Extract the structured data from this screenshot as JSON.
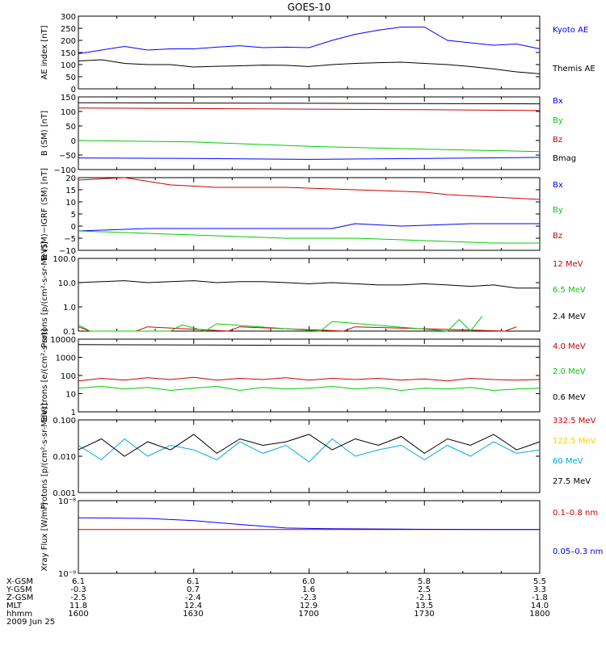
{
  "title": "GOES-10",
  "date": "2009 Jun 25",
  "ephemeris": {
    "labels": [
      "X-GSM",
      "Y-GSM",
      "Z-GSM",
      "MLT",
      "hhmm"
    ],
    "columns": [
      [
        "6.1",
        "-0.3",
        "-2.5",
        "11.8",
        "1600"
      ],
      [
        "6.1",
        "0.7",
        "-2.4",
        "12.4",
        "1630"
      ],
      [
        "6.0",
        "1.6",
        "-2.3",
        "12.9",
        "1700"
      ],
      [
        "5.8",
        "2.5",
        "-2.1",
        "13.5",
        "1730"
      ],
      [
        "5.5",
        "3.3",
        "-1.8",
        "14.0",
        "1800"
      ]
    ]
  },
  "chart_data": [
    {
      "type": "line",
      "ylabel": "AE index [nT]",
      "ylim": [
        0,
        300
      ],
      "yscale": "linear",
      "yticks": [
        0,
        50,
        100,
        150,
        200,
        250,
        300
      ],
      "yticklabels": [
        "0",
        "50",
        "100",
        "150",
        "200",
        "250",
        "300"
      ],
      "xlim": [
        16.0,
        18.0
      ],
      "series": [
        {
          "name": "Kyoto AE",
          "color": "#0000ff",
          "x": [
            16.0,
            16.1,
            16.2,
            16.3,
            16.4,
            16.5,
            16.6,
            16.7,
            16.8,
            16.9,
            17.0,
            17.1,
            17.2,
            17.3,
            17.4,
            17.5,
            17.6,
            17.7,
            17.8,
            17.9,
            18.0
          ],
          "y": [
            145,
            160,
            175,
            160,
            165,
            165,
            172,
            178,
            170,
            172,
            170,
            200,
            225,
            242,
            255,
            255,
            200,
            190,
            180,
            185,
            165
          ]
        },
        {
          "name": "Themis AE",
          "color": "#000000",
          "x": [
            16.0,
            16.1,
            16.2,
            16.3,
            16.4,
            16.5,
            16.6,
            16.7,
            16.8,
            16.9,
            17.0,
            17.1,
            17.2,
            17.3,
            17.4,
            17.5,
            17.6,
            17.7,
            17.8,
            17.9,
            18.0
          ],
          "y": [
            115,
            120,
            105,
            100,
            100,
            90,
            93,
            95,
            98,
            97,
            92,
            100,
            105,
            108,
            110,
            105,
            100,
            92,
            82,
            70,
            62
          ]
        }
      ]
    },
    {
      "type": "line",
      "ylabel": "B (SM) [nT]",
      "ylim": [
        -100,
        150
      ],
      "yscale": "linear",
      "yticks": [
        -100,
        -50,
        0,
        50,
        100,
        150
      ],
      "yticklabels": [
        "−100",
        "−50",
        "0",
        "50",
        "100",
        "150"
      ],
      "xlim": [
        16.0,
        18.0
      ],
      "series": [
        {
          "name": "Bx",
          "color": "#0000ff",
          "x": [
            16.0,
            16.5,
            17.0,
            17.5,
            18.0
          ],
          "y": [
            -60,
            -62,
            -65,
            -62,
            -58
          ]
        },
        {
          "name": "By",
          "color": "#00cc00",
          "x": [
            16.0,
            16.5,
            17.0,
            17.5,
            18.0
          ],
          "y": [
            0,
            -5,
            -20,
            -30,
            -38
          ]
        },
        {
          "name": "Bz",
          "color": "#cc0000",
          "x": [
            16.0,
            16.5,
            17.0,
            17.5,
            18.0
          ],
          "y": [
            112,
            110,
            108,
            106,
            103
          ]
        },
        {
          "name": "Bmag",
          "color": "#000000",
          "x": [
            16.0,
            16.5,
            17.0,
            17.5,
            18.0
          ],
          "y": [
            130,
            129,
            128,
            127,
            126
          ]
        }
      ]
    },
    {
      "type": "line",
      "ylabel": "B (SM)−IGRF (SM) [nT]",
      "ylim": [
        -10,
        20
      ],
      "yscale": "linear",
      "yticks": [
        -10,
        -5,
        0,
        5,
        10,
        15,
        20
      ],
      "yticklabels": [
        "−10",
        "−5",
        "0",
        "5",
        "10",
        "15",
        "20"
      ],
      "xlim": [
        16.0,
        18.0
      ],
      "series": [
        {
          "name": "Bx",
          "color": "#0000ff",
          "x": [
            16.0,
            16.3,
            16.6,
            16.9,
            17.1,
            17.2,
            17.4,
            17.7,
            18.0
          ],
          "y": [
            -2,
            -1,
            -1,
            -1,
            -1,
            1,
            0,
            1,
            1
          ]
        },
        {
          "name": "By",
          "color": "#00cc00",
          "x": [
            16.0,
            16.3,
            16.6,
            16.9,
            17.2,
            17.5,
            17.8,
            18.0
          ],
          "y": [
            -2,
            -3,
            -4,
            -5,
            -5,
            -6,
            -7,
            -7
          ]
        },
        {
          "name": "Bz",
          "color": "#cc0000",
          "x": [
            16.0,
            16.2,
            16.4,
            16.6,
            16.9,
            17.2,
            17.5,
            17.6,
            17.8,
            18.0
          ],
          "y": [
            19,
            20,
            17,
            16,
            16,
            15,
            14,
            13,
            12,
            11
          ]
        }
      ]
    },
    {
      "type": "line",
      "ylabel": "Protons [p/(cm²-s-sr-MeV)]",
      "ylim": [
        0.1,
        100
      ],
      "yscale": "log",
      "yticks": [
        0.1,
        1,
        10,
        100
      ],
      "yticklabels": [
        "0.1",
        "1.0",
        "10.0",
        "100.0"
      ],
      "xlim": [
        16.0,
        18.0
      ],
      "series": [
        {
          "name": "12 MeV",
          "color": "#cc0000",
          "x": [
            16.0,
            16.05,
            16.25,
            16.3,
            16.65,
            16.7,
            17.15,
            17.2,
            17.85,
            17.9
          ],
          "y": [
            0.15,
            0.1,
            0.1,
            0.15,
            0.1,
            0.15,
            0.1,
            0.15,
            0.1,
            0.15
          ]
        },
        {
          "name": "6.5 MeV",
          "color": "#00cc00",
          "x": [
            16.0,
            16.05,
            16.4,
            16.45,
            16.55,
            16.6,
            17.05,
            17.1,
            17.6,
            17.65,
            17.7,
            17.75
          ],
          "y": [
            0.18,
            0.1,
            0.1,
            0.18,
            0.1,
            0.2,
            0.1,
            0.25,
            0.1,
            0.3,
            0.1,
            0.4
          ]
        },
        {
          "name": "2.4 MeV",
          "color": "#000000",
          "x": [
            16.0,
            16.1,
            16.2,
            16.3,
            16.4,
            16.5,
            16.6,
            16.7,
            16.8,
            16.9,
            17.0,
            17.1,
            17.2,
            17.3,
            17.4,
            17.5,
            17.6,
            17.7,
            17.8,
            17.9,
            18.0
          ],
          "y": [
            10,
            11,
            12,
            10,
            11,
            12,
            10,
            11,
            11,
            10,
            9,
            10,
            9,
            8,
            8,
            9,
            8,
            7,
            8,
            6,
            6
          ]
        }
      ]
    },
    {
      "type": "line",
      "ylabel": "Electrons [e/(cm²-s-sr)]",
      "ylim": [
        1,
        10000
      ],
      "yscale": "log",
      "yticks": [
        1,
        10,
        100,
        1000,
        10000
      ],
      "yticklabels": [
        "1",
        "10",
        "100",
        "1000",
        "10000"
      ],
      "xlim": [
        16.0,
        18.0
      ],
      "series": [
        {
          "name": "4.0 MeV",
          "color": "#cc0000",
          "x": [
            16.0,
            16.1,
            16.2,
            16.3,
            16.4,
            16.5,
            16.6,
            16.7,
            16.8,
            16.9,
            17.0,
            17.1,
            17.2,
            17.3,
            17.4,
            17.5,
            17.6,
            17.7,
            17.8,
            17.9,
            18.0
          ],
          "y": [
            50,
            70,
            55,
            75,
            60,
            80,
            55,
            70,
            60,
            75,
            55,
            70,
            60,
            70,
            55,
            65,
            50,
            70,
            60,
            55,
            60
          ]
        },
        {
          "name": "2.0 MeV",
          "color": "#00cc00",
          "x": [
            16.0,
            16.1,
            16.2,
            16.3,
            16.4,
            16.5,
            16.6,
            16.7,
            16.8,
            16.9,
            17.0,
            17.1,
            17.2,
            17.3,
            17.4,
            17.5,
            17.6,
            17.7,
            17.8,
            17.9,
            18.0
          ],
          "y": [
            20,
            25,
            18,
            22,
            15,
            20,
            25,
            15,
            22,
            18,
            20,
            25,
            18,
            22,
            15,
            20,
            18,
            22,
            15,
            18,
            20
          ]
        },
        {
          "name": "0.6 MeV",
          "color": "#000000",
          "x": [
            16.0,
            16.5,
            17.0,
            17.5,
            18.0
          ],
          "y": [
            5000,
            4800,
            4500,
            4300,
            4000
          ]
        }
      ]
    },
    {
      "type": "line",
      "ylabel": "Protons [p/(cm²-s-sr-MeV)]",
      "ylim": [
        0.001,
        0.1
      ],
      "yscale": "log",
      "yticks": [
        0.001,
        0.01,
        0.1
      ],
      "yticklabels": [
        "0.001",
        "0.010",
        "0.100"
      ],
      "xlim": [
        16.0,
        18.0
      ],
      "series": [
        {
          "name": "332.5 MeV",
          "color": "#cc0000",
          "x": [],
          "y": []
        },
        {
          "name": "122.5 MeV",
          "color": "#ffcc00",
          "x": [],
          "y": []
        },
        {
          "name": "60 MeV",
          "color": "#00aadd",
          "x": [
            16.0,
            16.1,
            16.2,
            16.3,
            16.4,
            16.5,
            16.6,
            16.7,
            16.8,
            16.9,
            17.0,
            17.1,
            17.2,
            17.3,
            17.4,
            17.5,
            17.6,
            17.7,
            17.8,
            17.9,
            18.0
          ],
          "y": [
            0.02,
            0.008,
            0.03,
            0.01,
            0.02,
            0.015,
            0.008,
            0.025,
            0.012,
            0.02,
            0.007,
            0.03,
            0.01,
            0.015,
            0.02,
            0.008,
            0.02,
            0.01,
            0.025,
            0.012,
            0.015
          ]
        },
        {
          "name": "27.5 MeV",
          "color": "#000000",
          "x": [
            16.0,
            16.1,
            16.2,
            16.3,
            16.4,
            16.5,
            16.6,
            16.7,
            16.8,
            16.9,
            17.0,
            17.1,
            17.2,
            17.3,
            17.4,
            17.5,
            17.6,
            17.7,
            17.8,
            17.9,
            18.0
          ],
          "y": [
            0.015,
            0.03,
            0.01,
            0.025,
            0.015,
            0.04,
            0.012,
            0.03,
            0.02,
            0.025,
            0.04,
            0.015,
            0.03,
            0.02,
            0.035,
            0.012,
            0.03,
            0.02,
            0.04,
            0.015,
            0.025
          ]
        }
      ]
    },
    {
      "type": "line",
      "ylabel": "Xray Flux [W/m²]",
      "ylim": [
        1e-09,
        1e-08
      ],
      "yscale": "log",
      "yticks": [
        1e-09,
        1e-08
      ],
      "yticklabels": [
        "10⁻⁹",
        "10⁻⁸"
      ],
      "xlim": [
        16.0,
        18.0
      ],
      "series": [
        {
          "name": "0.1–0.8 nm",
          "color": "#cc0000",
          "x": [
            16.0,
            18.0
          ],
          "y": [
            4e-09,
            4e-09
          ]
        },
        {
          "name": "0.05–0.3 nm",
          "color": "#0000ff",
          "x": [
            16.0,
            16.3,
            16.5,
            16.7,
            16.9,
            17.1,
            17.4,
            17.8,
            18.0
          ],
          "y": [
            5.8e-09,
            5.7e-09,
            5.3e-09,
            4.7e-09,
            4.2e-09,
            4.1e-09,
            4.05e-09,
            4e-09,
            4e-09
          ]
        }
      ]
    }
  ]
}
